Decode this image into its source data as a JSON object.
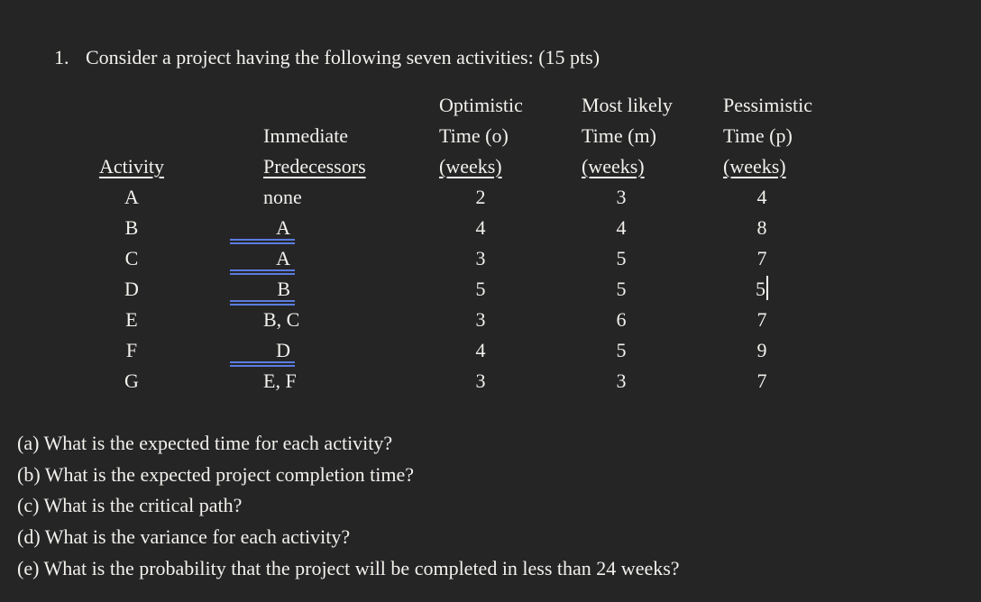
{
  "page": {
    "background_color": "#252526",
    "text_color": "#f3f1ec",
    "blank_underline_color": "#5b7ce0"
  },
  "title": {
    "number": "1.",
    "text": "Consider a project having the following seven activities: (15 pts)"
  },
  "table": {
    "col_activity": {
      "line3": "Activity"
    },
    "col_predecessors": {
      "line2": "Immediate",
      "line3": "Predecessors"
    },
    "col_optimistic": {
      "line1": "Optimistic",
      "line2": "Time (o)",
      "line3": "(weeks)"
    },
    "col_most_likely": {
      "line1": "Most likely",
      "line2": "Time (m)",
      "line3": "(weeks)"
    },
    "col_pessimistic": {
      "line1": "Pessimistic",
      "line2": "Time (p)",
      "line3": "(weeks)"
    },
    "rows": [
      {
        "activity": "A",
        "predecessors": "none",
        "optimistic": "2",
        "most_likely": "3",
        "pessimistic": "4"
      },
      {
        "activity": "B",
        "predecessors": "A",
        "optimistic": "4",
        "most_likely": "4",
        "pessimistic": "8"
      },
      {
        "activity": "C",
        "predecessors": "A",
        "optimistic": "3",
        "most_likely": "5",
        "pessimistic": "7"
      },
      {
        "activity": "D",
        "predecessors": "B",
        "optimistic": "5",
        "most_likely": "5",
        "pessimistic": "5"
      },
      {
        "activity": "E",
        "predecessors": "B, C",
        "optimistic": "3",
        "most_likely": "6",
        "pessimistic": "7"
      },
      {
        "activity": "F",
        "predecessors": "D",
        "optimistic": "4",
        "most_likely": "5",
        "pessimistic": "9"
      },
      {
        "activity": "G",
        "predecessors": "E, F",
        "optimistic": "3",
        "most_likely": "3",
        "pessimistic": "7"
      }
    ]
  },
  "questions": [
    "(a) What is the expected time for each activity?",
    "(b) What is the expected project completion time?",
    "(c) What is the critical path?",
    "(d) What is the variance for each activity?",
    "(e) What is the probability that the project will be completed in less than 24 weeks?"
  ]
}
